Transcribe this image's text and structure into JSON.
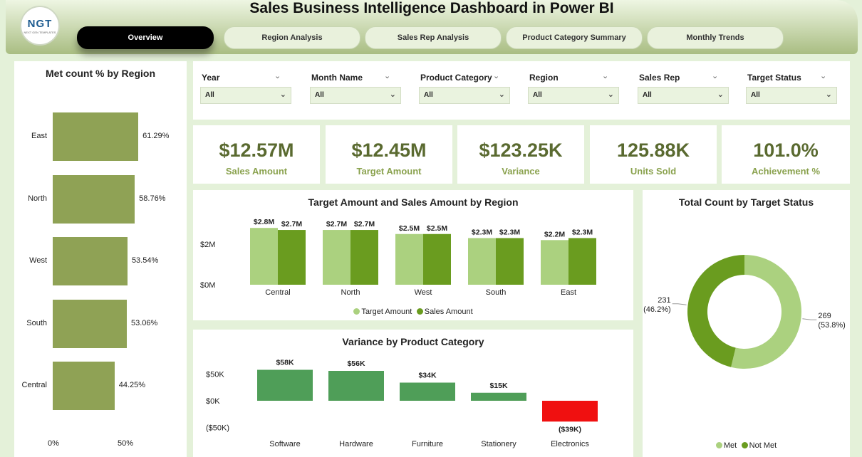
{
  "header": {
    "title": "Sales Business Intelligence Dashboard in Power BI",
    "logo_text": "NGT",
    "logo_sub": "NEXT GEN TEMPLATES",
    "tabs": [
      {
        "label": "Overview",
        "active": true
      },
      {
        "label": "Region Analysis",
        "active": false
      },
      {
        "label": "Sales Rep Analysis",
        "active": false
      },
      {
        "label": "Product Category Summary",
        "active": false
      },
      {
        "label": "Monthly Trends",
        "active": false
      }
    ]
  },
  "met_by_region": {
    "title": "Met count % by Region",
    "items": [
      {
        "label": "East",
        "value": 61.29,
        "display": "61.29%"
      },
      {
        "label": "North",
        "value": 58.76,
        "display": "58.76%"
      },
      {
        "label": "West",
        "value": 53.54,
        "display": "53.54%"
      },
      {
        "label": "South",
        "value": 53.06,
        "display": "53.06%"
      },
      {
        "label": "Central",
        "value": 44.25,
        "display": "44.25%"
      }
    ],
    "axis": [
      "0%",
      "50%"
    ],
    "bar_color": "#8fa255"
  },
  "filters": [
    {
      "label": "Year",
      "value": "All"
    },
    {
      "label": "Month Name",
      "value": "All"
    },
    {
      "label": "Product Category",
      "value": "All"
    },
    {
      "label": "Region",
      "value": "All"
    },
    {
      "label": "Sales Rep",
      "value": "All"
    },
    {
      "label": "Target Status",
      "value": "All"
    }
  ],
  "kpis": [
    {
      "value": "$12.57M",
      "label": "Sales Amount"
    },
    {
      "value": "$12.45M",
      "label": "Target Amount"
    },
    {
      "value": "$123.25K",
      "label": "Variance"
    },
    {
      "value": "125.88K",
      "label": "Units Sold"
    },
    {
      "value": "101.0%",
      "label": "Achievement %"
    }
  ],
  "chart_data": [
    {
      "type": "bar",
      "title": "Target Amount and Sales Amount by Region",
      "categories": [
        "Central",
        "North",
        "West",
        "South",
        "East"
      ],
      "series": [
        {
          "name": "Target Amount",
          "values": [
            2.8,
            2.7,
            2.5,
            2.3,
            2.2
          ],
          "labels": [
            "$2.8M",
            "$2.7M",
            "$2.5M",
            "$2.3M",
            "$2.2M"
          ],
          "color": "#abd17f"
        },
        {
          "name": "Sales Amount",
          "values": [
            2.7,
            2.7,
            2.5,
            2.3,
            2.3
          ],
          "labels": [
            "$2.7M",
            "$2.7M",
            "$2.5M",
            "$2.3M",
            "$2.3M"
          ],
          "color": "#6a9c1f"
        }
      ],
      "ytick_labels": [
        "$2M",
        "$0M"
      ],
      "yticks": [
        2,
        0
      ],
      "ylim": [
        0,
        3
      ],
      "legend": "bottom"
    },
    {
      "type": "bar",
      "title": "Variance by Product Category",
      "categories": [
        "Software",
        "Hardware",
        "Furniture",
        "Stationery",
        "Electronics"
      ],
      "values": [
        58,
        56,
        34,
        15,
        -39
      ],
      "labels": [
        "$58K",
        "$56K",
        "$34K",
        "$15K",
        "($39K)"
      ],
      "ytick_labels": [
        "$50K",
        "$0K",
        "($50K)"
      ],
      "yticks": [
        50,
        0,
        -50
      ],
      "ylim": [
        -50,
        60
      ],
      "positive_color": "#4f9e58",
      "negative_color": "#f01010"
    },
    {
      "type": "pie",
      "title": "Total Count by Target Status",
      "slices": [
        {
          "name": "Met",
          "value": 269,
          "label": "269",
          "pct": "(53.8%)",
          "color": "#abd17f"
        },
        {
          "name": "Not Met",
          "value": 231,
          "label": "231",
          "pct": "(46.2%)",
          "color": "#6a9c1f"
        }
      ],
      "donut": true,
      "legend": "bottom"
    }
  ]
}
